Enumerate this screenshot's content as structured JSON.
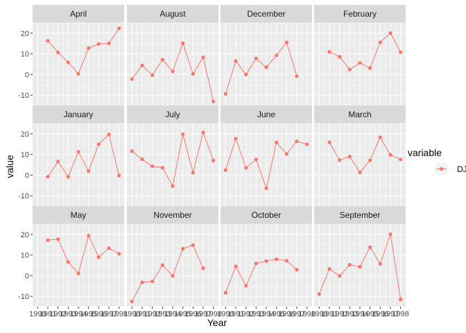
{
  "chart_data": {
    "type": "line",
    "xlabel": "Year",
    "ylabel": "value",
    "x": [
      1990,
      1991,
      1992,
      1993,
      1994,
      1995,
      1996,
      1997,
      1998
    ],
    "x_tick_labels": [
      "1990",
      "1991",
      "1992",
      "1993",
      "1994",
      "1995",
      "1996",
      "1997",
      "1998"
    ],
    "ylim": [
      -15,
      25
    ],
    "y_ticks": [
      -10,
      0,
      10,
      20
    ],
    "grid": true,
    "legend": {
      "title": "variable",
      "entries": [
        "DJIA"
      ],
      "placement": "right"
    },
    "colors": {
      "series": "#F8766D",
      "panel_bg": "#EBEBEB",
      "strip_bg": "#D9D9D9",
      "grid": "#FFFFFF"
    },
    "series_name": "DJIA",
    "panels": [
      {
        "label": "April",
        "values": [
          null,
          16.3,
          10.7,
          5.9,
          0.3,
          12.8,
          14.8,
          15.1,
          22.4
        ]
      },
      {
        "label": "August",
        "values": [
          -2.2,
          4.4,
          -0.3,
          7.2,
          1.5,
          15.2,
          0.3,
          8.3,
          -13.1
        ]
      },
      {
        "label": "December",
        "values": [
          -9.4,
          6.5,
          0.0,
          7.8,
          3.5,
          9.3,
          15.6,
          -0.8,
          null
        ]
      },
      {
        "label": "February",
        "values": [
          null,
          11.0,
          8.6,
          2.4,
          5.6,
          3.1,
          15.6,
          20.1,
          10.8
        ]
      },
      {
        "label": "January",
        "values": [
          null,
          -0.8,
          6.6,
          -0.8,
          11.3,
          1.9,
          15.0,
          19.7,
          -0.2
        ]
      },
      {
        "label": "July",
        "values": [
          11.6,
          7.7,
          4.3,
          3.6,
          -5.3,
          19.8,
          1.2,
          20.7,
          7.1
        ]
      },
      {
        "label": "June",
        "values": [
          2.4,
          17.6,
          3.5,
          7.6,
          -6.4,
          15.8,
          10.2,
          16.4,
          14.9
        ]
      },
      {
        "label": "March",
        "values": [
          null,
          15.9,
          7.3,
          9.0,
          1.3,
          7.2,
          18.3,
          9.8,
          7.6
        ]
      },
      {
        "label": "May",
        "values": [
          null,
          17.2,
          17.7,
          6.6,
          1.1,
          19.4,
          9.0,
          13.3,
          10.6
        ]
      },
      {
        "label": "November",
        "values": [
          -12.5,
          -3.2,
          -2.8,
          5.1,
          -0.1,
          13.1,
          14.8,
          3.6,
          null
        ]
      },
      {
        "label": "October",
        "values": [
          -8.3,
          4.5,
          -4.9,
          5.9,
          7.1,
          8.0,
          7.3,
          2.9,
          null
        ]
      },
      {
        "label": "September",
        "values": [
          -8.9,
          3.3,
          -0.1,
          5.3,
          4.3,
          13.8,
          5.7,
          20.1,
          -11.5
        ]
      }
    ]
  }
}
